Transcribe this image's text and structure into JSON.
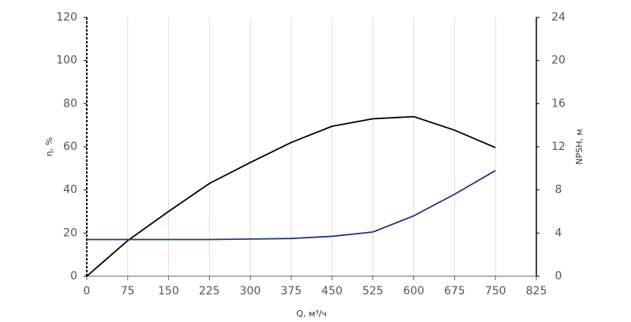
{
  "chart_data": {
    "type": "line",
    "x_label": "Q, м³/ч",
    "y_label": "η, %",
    "y2_label": "NPSH, м",
    "x": [
      0,
      75,
      150,
      225,
      300,
      375,
      450,
      525,
      600,
      675,
      750
    ],
    "series": [
      {
        "name": "η",
        "color": "#000000",
        "values": [
          0,
          16.5,
          30,
          43,
          52.7,
          62,
          69.5,
          73,
          74,
          67.7,
          59.6
        ]
      },
      {
        "name": "NPSH",
        "color": "#1f3a7a",
        "axis": "y2",
        "values": [
          3.4,
          3.4,
          3.4,
          3.4,
          3.45,
          3.5,
          3.7,
          4.1,
          5.6,
          7.6,
          9.8
        ]
      }
    ],
    "xlim": [
      0,
      825
    ],
    "xticks": [
      0,
      75,
      150,
      225,
      300,
      375,
      450,
      525,
      600,
      675,
      750,
      825
    ],
    "ylim": [
      0,
      120
    ],
    "yticks": [
      0,
      20,
      40,
      60,
      80,
      100,
      120
    ],
    "y2lim": [
      0,
      24
    ],
    "y2ticks": [
      0,
      4,
      8,
      12,
      16,
      20,
      24
    ],
    "grid": true
  }
}
